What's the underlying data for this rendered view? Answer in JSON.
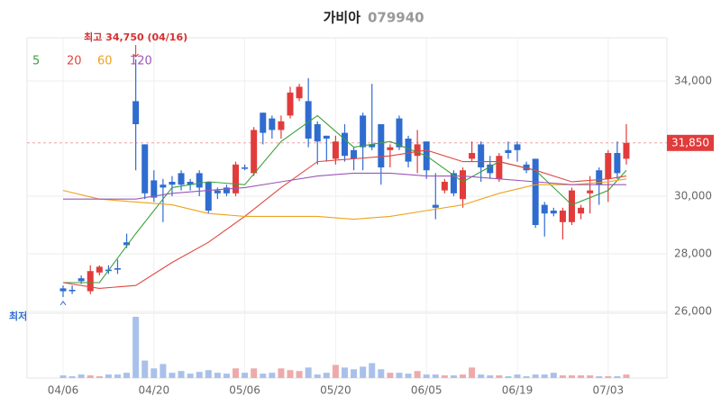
{
  "chart_data": {
    "type": "candlestick",
    "title": "가비아",
    "subtitle": "079940",
    "annotations": {
      "high": "최고 34,750 (04/16)",
      "low": "최저"
    },
    "categories": [
      "04/06",
      null,
      null,
      null,
      null,
      null,
      null,
      null,
      null,
      null,
      "04/20",
      null,
      null,
      null,
      null,
      null,
      null,
      null,
      null,
      null,
      "05/06",
      null,
      null,
      null,
      null,
      null,
      null,
      null,
      null,
      null,
      "05/20",
      null,
      null,
      null,
      null,
      null,
      null,
      null,
      null,
      null,
      "06/05",
      null,
      null,
      null,
      null,
      null,
      null,
      null,
      null,
      null,
      "06/19",
      null,
      null,
      null,
      null,
      null,
      null,
      null,
      null,
      null,
      "07/03",
      null,
      null
    ],
    "open": [
      26800,
      26750,
      27150,
      26700,
      27350,
      27450,
      27500,
      28400,
      33300,
      31800,
      30550,
      30400,
      30500,
      30800,
      30500,
      30800,
      30500,
      30200,
      30300,
      30100,
      31000,
      30800,
      32900,
      32700,
      32300,
      32800,
      33400,
      33300,
      32500,
      32100,
      31300,
      32200,
      31600,
      32800,
      31800,
      32500,
      31600,
      32700,
      32000,
      31400,
      31900,
      29700,
      30200,
      30800,
      29900,
      31300,
      31800,
      31100,
      30600,
      31600,
      31800,
      31100,
      31300,
      29700,
      29500,
      29100,
      29100,
      29400,
      30100,
      30900,
      30600,
      31500,
      31300
    ],
    "high": [
      26900,
      26900,
      27250,
      27600,
      27600,
      27600,
      27800,
      28700,
      34750,
      31800,
      30900,
      30600,
      30700,
      30900,
      30600,
      30900,
      30500,
      30300,
      30400,
      31200,
      31100,
      32400,
      32900,
      32800,
      32800,
      33800,
      33900,
      34100,
      32600,
      32100,
      32100,
      32500,
      31700,
      32900,
      33900,
      32500,
      31800,
      32800,
      32100,
      32300,
      31900,
      30800,
      30600,
      30900,
      31000,
      31900,
      31900,
      31400,
      31500,
      31900,
      31900,
      31200,
      31300,
      29800,
      29600,
      29600,
      30300,
      29700,
      30700,
      31000,
      31600,
      31900,
      32500
    ],
    "low": [
      26500,
      26600,
      26950,
      26600,
      27250,
      27300,
      27300,
      28200,
      30900,
      29900,
      29800,
      29100,
      30000,
      30200,
      30200,
      30000,
      29400,
      29900,
      30000,
      30000,
      30900,
      30700,
      31800,
      32000,
      32000,
      32700,
      33300,
      31700,
      31100,
      31200,
      31100,
      31200,
      30900,
      30900,
      31600,
      30400,
      31000,
      31600,
      31000,
      30800,
      30600,
      29200,
      30100,
      30000,
      29600,
      31200,
      30500,
      30600,
      30500,
      31300,
      31200,
      30800,
      28900,
      28600,
      29300,
      28500,
      29000,
      29200,
      29400,
      29700,
      29800,
      30600,
      31100
    ],
    "close": [
      26700,
      26700,
      27050,
      27400,
      27550,
      27400,
      27450,
      28300,
      32500,
      30100,
      29950,
      30300,
      30400,
      30400,
      30400,
      30300,
      29500,
      30100,
      30100,
      31100,
      30950,
      32300,
      32200,
      32300,
      32600,
      33600,
      33800,
      32000,
      31900,
      32000,
      31900,
      31400,
      31300,
      31700,
      31700,
      31000,
      31700,
      31700,
      31200,
      31800,
      30900,
      29600,
      30500,
      30100,
      30900,
      31500,
      31000,
      30800,
      31400,
      31500,
      31600,
      30900,
      29000,
      29400,
      29400,
      29500,
      30200,
      29600,
      30200,
      30400,
      31500,
      30800,
      31850
    ],
    "volume": [
      30000,
      20000,
      40000,
      30000,
      20000,
      40000,
      40000,
      60000,
      700000,
      200000,
      110000,
      160000,
      60000,
      80000,
      50000,
      70000,
      90000,
      60000,
      50000,
      110000,
      60000,
      110000,
      50000,
      60000,
      110000,
      90000,
      80000,
      120000,
      40000,
      60000,
      150000,
      120000,
      100000,
      130000,
      170000,
      100000,
      60000,
      60000,
      50000,
      80000,
      40000,
      40000,
      30000,
      30000,
      40000,
      120000,
      40000,
      30000,
      30000,
      20000,
      40000,
      20000,
      40000,
      40000,
      60000,
      30000,
      30000,
      30000,
      30000,
      20000,
      20000,
      20000,
      40000
    ],
    "up_color": "#e23b3b",
    "down_color": "#2f6cd0",
    "up_volume_color": "#eeaaaa",
    "down_volume_color": "#a9c1ea",
    "series": [
      {
        "name": "5",
        "color": "#3c9f3c",
        "x": [
          0,
          4,
          8,
          12,
          16,
          20,
          24,
          28,
          32,
          36,
          40,
          44,
          48,
          52,
          56,
          60,
          62
        ],
        "values": [
          27000,
          27000,
          28700,
          30300,
          30500,
          30400,
          31900,
          32800,
          31700,
          31900,
          31400,
          30500,
          31200,
          30900,
          29700,
          30200,
          30900
        ]
      },
      {
        "name": "20",
        "color": "#e0483e",
        "x": [
          0,
          4,
          8,
          12,
          16,
          20,
          24,
          28,
          32,
          36,
          40,
          44,
          48,
          52,
          56,
          60,
          62
        ],
        "values": [
          27000,
          26800,
          26900,
          27700,
          28400,
          29300,
          30300,
          31200,
          31300,
          31400,
          31600,
          31200,
          31200,
          30900,
          30500,
          30600,
          30700
        ]
      },
      {
        "name": "60",
        "color": "#eea21c",
        "x": [
          0,
          4,
          8,
          12,
          16,
          20,
          24,
          28,
          32,
          36,
          40,
          44,
          48,
          52,
          56,
          60,
          62
        ],
        "values": [
          30200,
          29900,
          29800,
          29700,
          29400,
          29300,
          29300,
          29300,
          29200,
          29300,
          29500,
          29700,
          30100,
          30400,
          30400,
          30500,
          30600
        ]
      },
      {
        "name": "120",
        "color": "#9a56b8",
        "x": [
          0,
          4,
          8,
          12,
          16,
          20,
          24,
          28,
          32,
          36,
          40,
          44,
          48,
          52,
          56,
          60,
          62
        ],
        "values": [
          29900,
          29900,
          29900,
          30100,
          30200,
          30300,
          30500,
          30700,
          30800,
          30800,
          30700,
          30700,
          30600,
          30500,
          30400,
          30400,
          30400
        ]
      }
    ],
    "ylim": [
      26000,
      35500
    ],
    "yticks": [
      {
        "value": 26000,
        "label": "26,000"
      },
      {
        "value": 28000,
        "label": "28,000"
      },
      {
        "value": 30000,
        "label": "30,000"
      },
      {
        "value": 34000,
        "label": "34,000"
      }
    ],
    "last_price": 31850,
    "last_price_label": "31,850",
    "grid": true
  }
}
